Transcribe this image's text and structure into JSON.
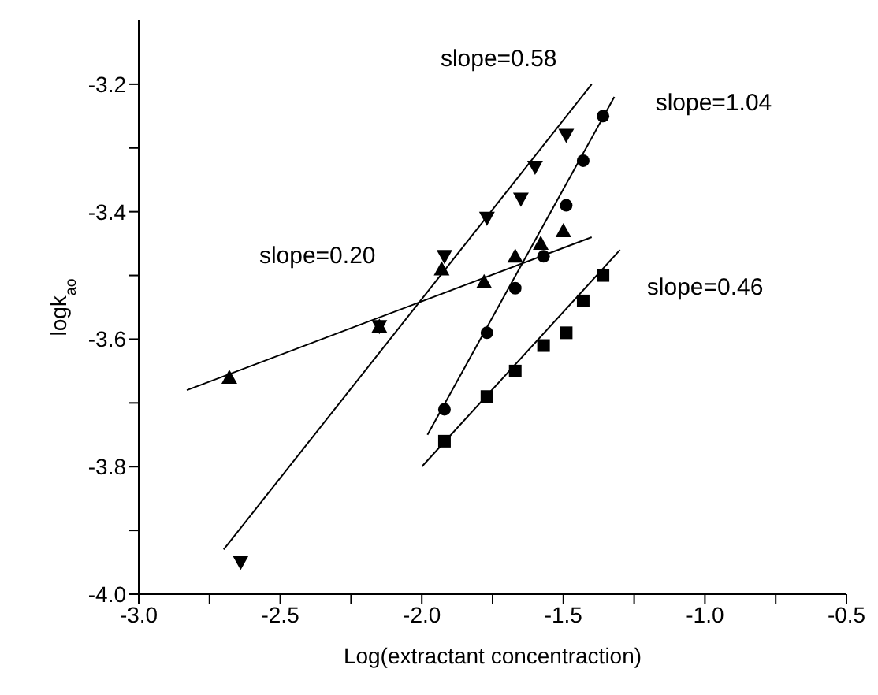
{
  "chart_data": {
    "type": "scatter",
    "xlabel": "Log(extractant concentraction)",
    "ylabel": "logk$_{ao}$",
    "xlim": [
      -3.0,
      -0.5
    ],
    "ylim": [
      -4.0,
      -3.1
    ],
    "xticks": [
      {
        "value": -3.0,
        "label": "-3.0"
      },
      {
        "value": -2.75,
        "label": null
      },
      -2.5,
      {
        "value": -2.25,
        "label": null
      },
      {
        "value": -2.0,
        "label": "-2.0"
      },
      {
        "value": -1.75,
        "label": null
      },
      -1.5,
      {
        "value": -1.25,
        "label": null
      },
      {
        "value": -1.0,
        "label": "-1.0"
      },
      {
        "value": -0.75,
        "label": null
      },
      -0.5
    ],
    "yticks": [
      {
        "value": -4.0,
        "label": "-4.0"
      },
      {
        "value": -3.9,
        "label": null
      },
      -3.8,
      {
        "value": -3.7,
        "label": null
      },
      -3.6,
      {
        "value": -3.5,
        "label": null
      },
      -3.4,
      {
        "value": -3.3,
        "label": null
      },
      -3.2
    ],
    "grid": false,
    "legend": false,
    "series": [
      {
        "marker": "triangle",
        "color": "#000000",
        "x": [
          -2.68,
          -2.15,
          -1.93,
          -1.78,
          -1.67,
          -1.58,
          -1.5
        ],
        "values": [
          -3.66,
          -3.58,
          -3.49,
          -3.51,
          -3.47,
          -3.45,
          -3.43
        ]
      },
      {
        "marker": "triangle-down",
        "color": "#000000",
        "x": [
          -2.64,
          -2.15,
          -1.92,
          -1.77,
          -1.65,
          -1.6,
          -1.49
        ],
        "values": [
          -3.95,
          -3.58,
          -3.47,
          -3.41,
          -3.38,
          -3.33,
          -3.28
        ]
      },
      {
        "marker": "circle",
        "color": "#000000",
        "x": [
          -1.92,
          -1.77,
          -1.67,
          -1.57,
          -1.49,
          -1.43,
          -1.36
        ],
        "values": [
          -3.71,
          -3.59,
          -3.52,
          -3.47,
          -3.39,
          -3.32,
          -3.25
        ]
      },
      {
        "marker": "square",
        "color": "#000000",
        "x": [
          -1.92,
          -1.77,
          -1.67,
          -1.57,
          -1.49,
          -1.43,
          -1.36
        ],
        "values": [
          -3.76,
          -3.69,
          -3.65,
          -3.61,
          -3.59,
          -3.54,
          -3.5
        ]
      },
      {
        "type": "line",
        "name": "slope=0.20",
        "marker": "none",
        "color": "#000000",
        "x": [
          -2.83,
          -1.4
        ],
        "values": [
          -3.68,
          -3.44
        ]
      },
      {
        "type": "line",
        "name": "slope=0.58",
        "marker": "none",
        "color": "#000000",
        "x": [
          -2.7,
          -1.4
        ],
        "values": [
          -3.93,
          -3.2
        ]
      },
      {
        "type": "line",
        "name": "slope=1.04",
        "marker": "none",
        "color": "#000000",
        "x": [
          -1.98,
          -1.32
        ],
        "values": [
          -3.75,
          -3.22
        ]
      },
      {
        "type": "line",
        "name": "slope=0.46",
        "marker": "none",
        "color": "#000000",
        "x": [
          -2.0,
          -1.3
        ],
        "values": [
          -3.8,
          -3.46
        ]
      }
    ]
  }
}
